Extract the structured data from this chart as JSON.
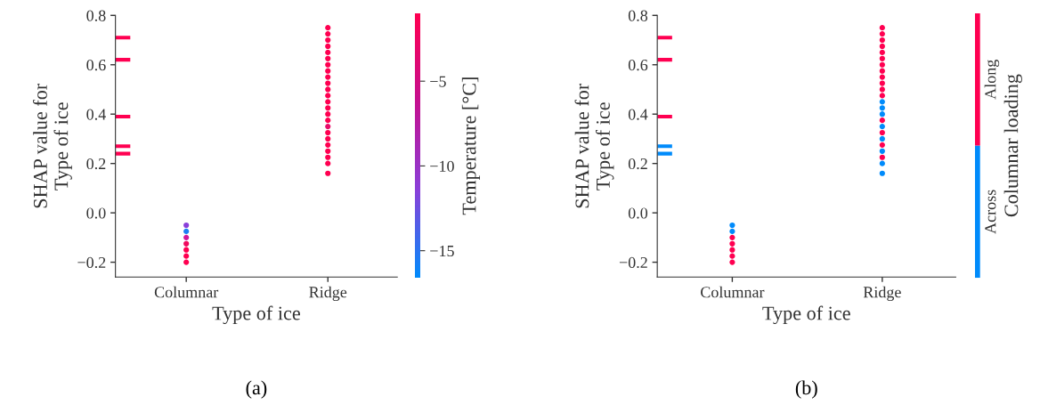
{
  "chart_data": [
    {
      "type": "scatter",
      "xlabel": "Type of ice",
      "ylabel": "SHAP value for\nType of ice",
      "clabel": "Temperature [°C]",
      "marker": "circle",
      "grid": false,
      "categories": [
        "Columnar",
        "Ridge"
      ],
      "ylim": [
        -0.26,
        0.8
      ],
      "yticks": [
        {
          "value": -0.2,
          "label": "−0.2"
        },
        {
          "value": 0.0,
          "label": "0.0"
        },
        {
          "value": 0.2,
          "label": "0.2"
        },
        {
          "value": 0.4,
          "label": "0.4"
        },
        {
          "value": 0.6,
          "label": "0.6"
        },
        {
          "value": 0.8,
          "label": "0.8"
        }
      ],
      "clim": [
        -16.6,
        -1
      ],
      "cticks": [
        {
          "value": -15,
          "label": "−15"
        },
        {
          "value": -10,
          "label": "−10"
        },
        {
          "value": -5,
          "label": "−5"
        }
      ],
      "ref_lines": [
        {
          "axis": "y",
          "value": 0.71,
          "color": "#ff0051"
        },
        {
          "axis": "y",
          "value": 0.62,
          "color": "#ff0051"
        },
        {
          "axis": "y",
          "value": 0.39,
          "color": "#ff0051"
        },
        {
          "axis": "y",
          "value": 0.27,
          "color": "#ff0051"
        },
        {
          "axis": "y",
          "value": 0.24,
          "color": "#ff0051"
        }
      ],
      "annotations": [
        "(a)"
      ],
      "series": [
        {
          "x": [
            "Columnar",
            "Columnar",
            "Columnar",
            "Columnar",
            "Columnar",
            "Columnar",
            "Columnar"
          ],
          "values": [
            -0.05,
            -0.075,
            -0.1,
            -0.125,
            -0.15,
            -0.175,
            -0.2
          ],
          "colors": [
            "#8a3fd9",
            "#1d7ef3",
            "#d0169a",
            "#f00a5e",
            "#ff0051",
            "#ff0051",
            "#ff0051"
          ]
        },
        {
          "x": [
            "Ridge",
            "Ridge",
            "Ridge",
            "Ridge",
            "Ridge",
            "Ridge",
            "Ridge",
            "Ridge",
            "Ridge",
            "Ridge",
            "Ridge",
            "Ridge",
            "Ridge",
            "Ridge",
            "Ridge",
            "Ridge",
            "Ridge",
            "Ridge",
            "Ridge",
            "Ridge",
            "Ridge",
            "Ridge",
            "Ridge",
            "Ridge"
          ],
          "values": [
            0.16,
            0.2,
            0.225,
            0.25,
            0.275,
            0.3,
            0.325,
            0.35,
            0.375,
            0.4,
            0.425,
            0.45,
            0.475,
            0.5,
            0.525,
            0.55,
            0.575,
            0.6,
            0.625,
            0.65,
            0.675,
            0.7,
            0.725,
            0.75
          ],
          "colors": [
            "#ff0051",
            "#ff0051",
            "#ff0051",
            "#ff0051",
            "#ff0051",
            "#ff0051",
            "#ff0051",
            "#e80d6a",
            "#ff0051",
            "#ff0051",
            "#ff0051",
            "#ff0051",
            "#ff0051",
            "#ff0051",
            "#ff0051",
            "#ff0051",
            "#ff0051",
            "#ff0051",
            "#ff0051",
            "#ff0051",
            "#ff0051",
            "#ff0051",
            "#ff0051",
            "#ff0051"
          ]
        }
      ]
    },
    {
      "type": "scatter",
      "xlabel": "Type of ice",
      "ylabel": "SHAP value for\nType of ice",
      "clabel": "Columnar loading",
      "marker": "circle",
      "grid": false,
      "categories": [
        "Columnar",
        "Ridge"
      ],
      "ylim": [
        -0.26,
        0.8
      ],
      "yticks": [
        {
          "value": -0.2,
          "label": "−0.2"
        },
        {
          "value": 0.0,
          "label": "0.0"
        },
        {
          "value": 0.2,
          "label": "0.2"
        },
        {
          "value": 0.4,
          "label": "0.4"
        },
        {
          "value": 0.6,
          "label": "0.6"
        },
        {
          "value": 0.8,
          "label": "0.8"
        }
      ],
      "legend": "right",
      "ref_lines": [
        {
          "axis": "y",
          "value": 0.71,
          "color": "#ff0051"
        },
        {
          "axis": "y",
          "value": 0.62,
          "color": "#ff0051"
        },
        {
          "axis": "y",
          "value": 0.39,
          "color": "#ff0051"
        },
        {
          "axis": "y",
          "value": 0.27,
          "color": "#008bfb"
        },
        {
          "axis": "y",
          "value": 0.24,
          "color": "#008bfb"
        }
      ],
      "annotations": [
        "(b)"
      ],
      "series": [
        {
          "name": "Across",
          "color": "#008bfb",
          "x": [
            "Columnar",
            "Columnar",
            "Ridge",
            "Ridge",
            "Ridge",
            "Ridge",
            "Ridge",
            "Ridge",
            "Ridge",
            "Ridge"
          ],
          "values": [
            -0.05,
            -0.075,
            0.16,
            0.2,
            0.25,
            0.3,
            0.35,
            0.4,
            0.425,
            0.45
          ]
        },
        {
          "name": "Along",
          "color": "#ff0051",
          "x": [
            "Columnar",
            "Columnar",
            "Columnar",
            "Columnar",
            "Columnar",
            "Ridge",
            "Ridge",
            "Ridge",
            "Ridge",
            "Ridge",
            "Ridge",
            "Ridge",
            "Ridge",
            "Ridge",
            "Ridge",
            "Ridge",
            "Ridge",
            "Ridge",
            "Ridge",
            "Ridge",
            "Ridge"
          ],
          "values": [
            -0.1,
            -0.125,
            -0.15,
            -0.175,
            -0.2,
            0.225,
            0.275,
            0.325,
            0.375,
            0.475,
            0.5,
            0.525,
            0.55,
            0.575,
            0.6,
            0.625,
            0.65,
            0.675,
            0.7,
            0.725,
            0.75
          ]
        }
      ]
    }
  ]
}
